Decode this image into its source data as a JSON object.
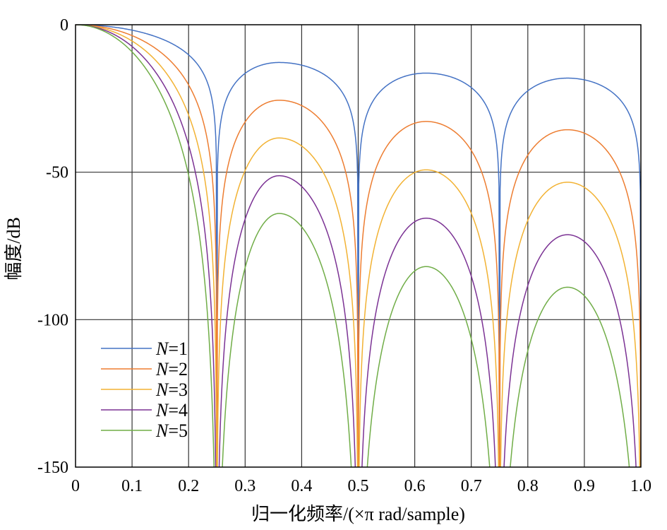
{
  "chart_data": {
    "type": "line",
    "title": "",
    "xlabel": "归一化频率/(×π rad/sample)",
    "ylabel": "幅度/dB",
    "xlim": [
      0,
      1
    ],
    "ylim": [
      -150,
      0
    ],
    "xticks": [
      0,
      0.1,
      0.2,
      0.3,
      0.4,
      0.5,
      0.6,
      0.7,
      0.8,
      0.9,
      1.0
    ],
    "xtick_labels": [
      "0",
      "0.1",
      "0.2",
      "0.3",
      "0.4",
      "0.5",
      "0.6",
      "0.7",
      "0.8",
      "0.9",
      "1.0"
    ],
    "yticks": [
      0,
      -50,
      -100,
      -150
    ],
    "ytick_labels": [
      "0",
      "-50",
      "-100",
      "-150"
    ],
    "grid": true,
    "legend_position": "bottom-left",
    "notch_frequencies": [
      0.25,
      0.5,
      0.75,
      1.0
    ],
    "series": [
      {
        "name": "N=1",
        "color": "#4472C4",
        "peaks_db": [
          -12.8,
          -16.4,
          -18.1
        ],
        "peak_x": [
          0.36,
          0.62,
          0.87
        ],
        "min_db": [
          -66,
          -57,
          -74
        ]
      },
      {
        "name": "N=2",
        "color": "#ED7D31",
        "peaks_db": [
          -25.6,
          -32.8,
          -35.6
        ],
        "peak_x": [
          0.36,
          0.62,
          0.87
        ],
        "min_db": [
          -132,
          -110,
          -150
        ]
      },
      {
        "name": "N=3",
        "color": "#F2B233",
        "peaks_db": [
          -38.4,
          -49.2,
          -53.4
        ],
        "peak_x": [
          0.36,
          0.62,
          0.87
        ],
        "min_db": [
          -150,
          -150,
          -150
        ]
      },
      {
        "name": "N=4",
        "color": "#7B3294",
        "peaks_db": [
          -51.2,
          -65.6,
          -71.2
        ],
        "peak_x": [
          0.36,
          0.62,
          0.87
        ],
        "min_db": [
          -150,
          -150,
          -150
        ]
      },
      {
        "name": "N=5",
        "color": "#70AD47",
        "peaks_db": [
          -64.0,
          -82.0,
          -89.0
        ],
        "peak_x": [
          0.36,
          0.62,
          0.87
        ],
        "min_db": [
          -150,
          -150,
          -150
        ]
      }
    ]
  }
}
